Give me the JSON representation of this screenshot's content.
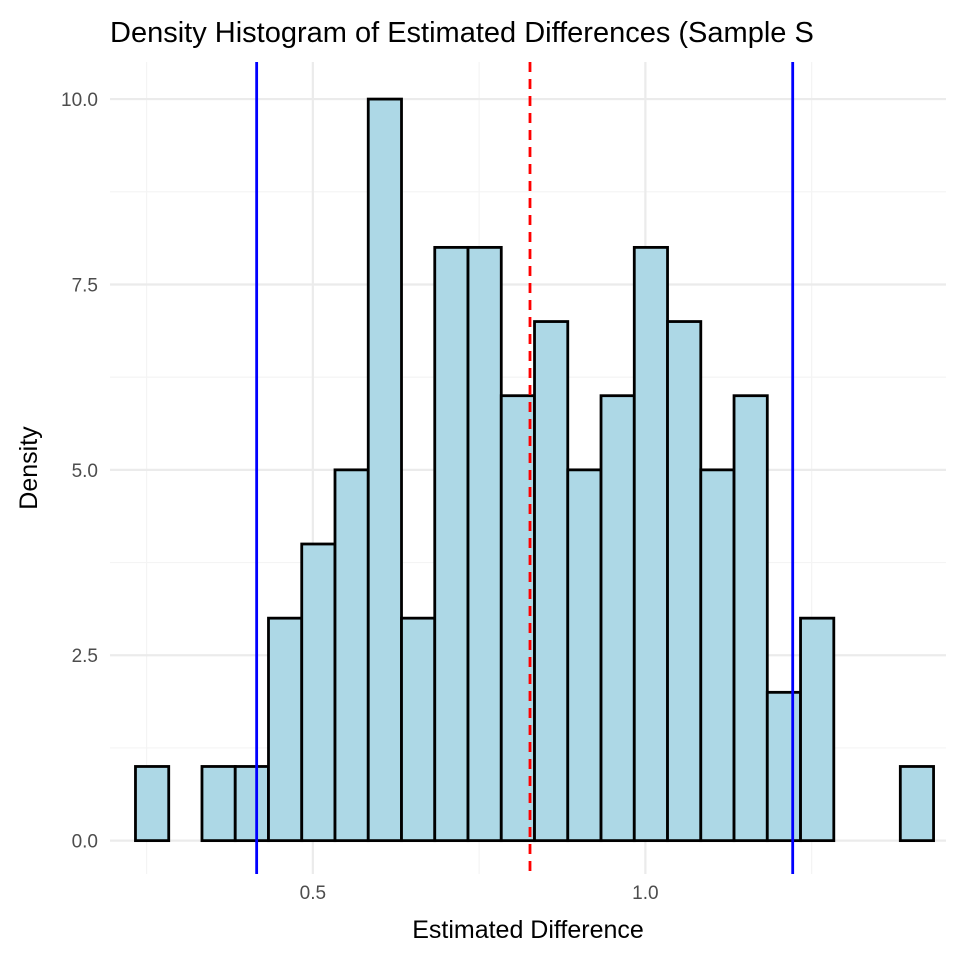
{
  "chart_data": {
    "type": "histogram",
    "title": "Density Histogram of Estimated Differences (Sample S",
    "xlabel": "Estimated Difference",
    "ylabel": "Density",
    "xlim": [
      0.195,
      1.452
    ],
    "ylim": [
      -0.45,
      10.5
    ],
    "x_ticks": [
      0.5,
      1.0
    ],
    "x_tick_labels": [
      "0.5",
      "1.0"
    ],
    "x_minor_ticks": [
      0.25,
      0.75,
      1.25
    ],
    "y_ticks": [
      0,
      2.5,
      5,
      7.5,
      10
    ],
    "y_tick_labels": [
      "0.0",
      "2.5",
      "5.0",
      "7.5",
      "10.0"
    ],
    "y_minor_ticks": [
      1.25,
      3.75,
      6.25,
      8.75
    ],
    "grid": true,
    "bins": {
      "start": 0.2333,
      "width": 0.05,
      "values": [
        1,
        0,
        1,
        1,
        3,
        4,
        5,
        10,
        3,
        8,
        8,
        6,
        7,
        5,
        6,
        8,
        7,
        5,
        6,
        2,
        3,
        0,
        0,
        1
      ]
    },
    "reference_lines": [
      {
        "x": 0.4155,
        "style": "solid",
        "color": "#0000ff"
      },
      {
        "x": 0.8265,
        "style": "dashed",
        "color": "#ff0000"
      },
      {
        "x": 1.2215,
        "style": "solid",
        "color": "#0000ff"
      }
    ],
    "colors": {
      "bar_fill": "#add8e6",
      "bar_stroke": "#000000",
      "grid_major": "#ebebeb",
      "grid_minor": "#f4f4f4"
    }
  }
}
